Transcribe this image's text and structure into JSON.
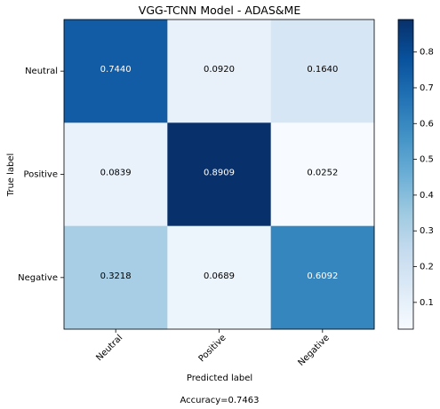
{
  "chart_data": {
    "type": "heatmap",
    "title": "VGG-TCNN Model  -  ADAS&ME",
    "xlabel": "Predicted label",
    "ylabel": "True label",
    "x_categories": [
      "Neutral",
      "Positive",
      "Negative"
    ],
    "y_categories": [
      "Neutral",
      "Positive",
      "Negative"
    ],
    "values": [
      [
        0.744,
        0.092,
        0.164
      ],
      [
        0.0839,
        0.8909,
        0.0252
      ],
      [
        0.3218,
        0.0689,
        0.6092
      ]
    ],
    "value_labels": [
      [
        "0.7440",
        "0.0920",
        "0.1640"
      ],
      [
        "0.0839",
        "0.8909",
        "0.0252"
      ],
      [
        "0.3218",
        "0.0689",
        "0.6092"
      ]
    ],
    "colormap": "Blues",
    "colorbar": {
      "min": 0.0252,
      "max": 0.8909,
      "ticks": [
        0.1,
        0.2,
        0.3,
        0.4,
        0.5,
        0.6,
        0.7,
        0.8
      ],
      "tick_labels": [
        "0.1",
        "0.2",
        "0.3",
        "0.4",
        "0.5",
        "0.6",
        "0.7",
        "0.8"
      ]
    },
    "grid": false,
    "footer": "Accuracy=0.7463"
  }
}
